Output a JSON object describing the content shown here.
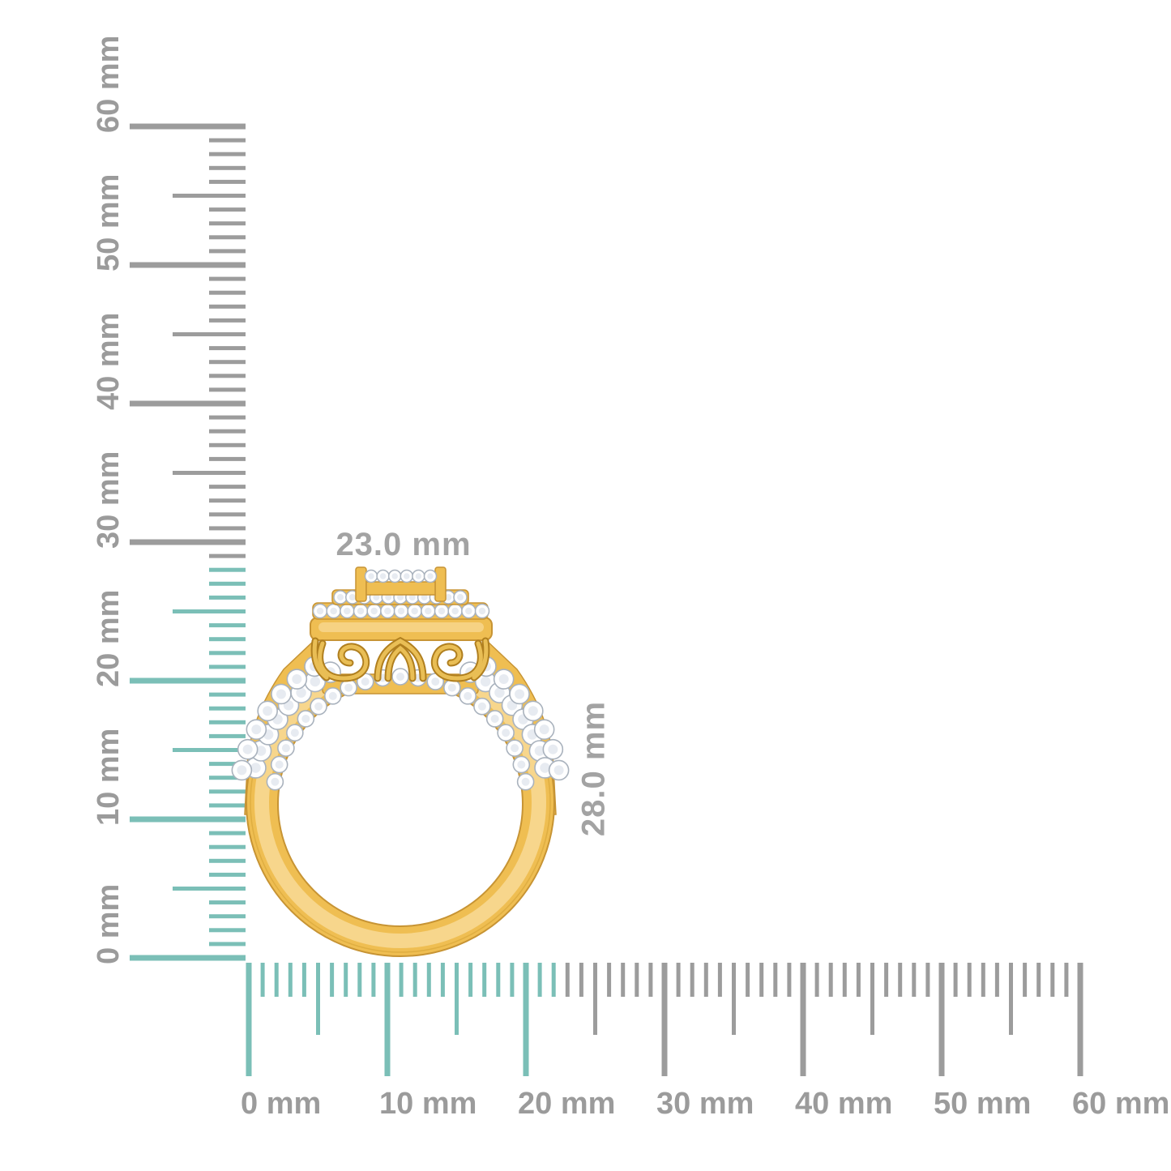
{
  "scene": {
    "background_color": "#FFFFFF",
    "subject": "yellow gold double-halo diamond ring, side profile, shown against millimeter rulers"
  },
  "annotations": {
    "width_label": "23.0 mm",
    "height_label": "28.0 mm",
    "measured_width_mm": 23.0,
    "measured_height_mm": 28.0
  },
  "rulers": {
    "unit": "mm",
    "vertical": {
      "labels": [
        "0 mm",
        "10 mm",
        "20 mm",
        "30 mm",
        "40 mm",
        "50 mm",
        "60 mm"
      ],
      "range_mm": [
        0,
        60
      ],
      "highlighted_span_mm": 28,
      "reading_direction": "bottom-to-top"
    },
    "horizontal": {
      "labels": [
        "0 mm",
        "10 mm",
        "20 mm",
        "30 mm",
        "40 mm",
        "50 mm",
        "60 mm"
      ],
      "range_mm": [
        0,
        60
      ],
      "highlighted_span_mm": 23,
      "reading_direction": "left-to-right"
    },
    "colors": {
      "highlight": "#7BBFB7",
      "default": "#9C9C9C",
      "label": "#9B9B9B"
    }
  },
  "ring": {
    "colors": {
      "gold": "#EFBE52",
      "gold_light": "#F7D68C",
      "gold_dark": "#C79434",
      "gold_deep": "#B07F1F",
      "diamond": "#FFFFFF",
      "diamond_edge": "#A9B2BD",
      "diamond_inner": "#E7EBF1"
    }
  }
}
